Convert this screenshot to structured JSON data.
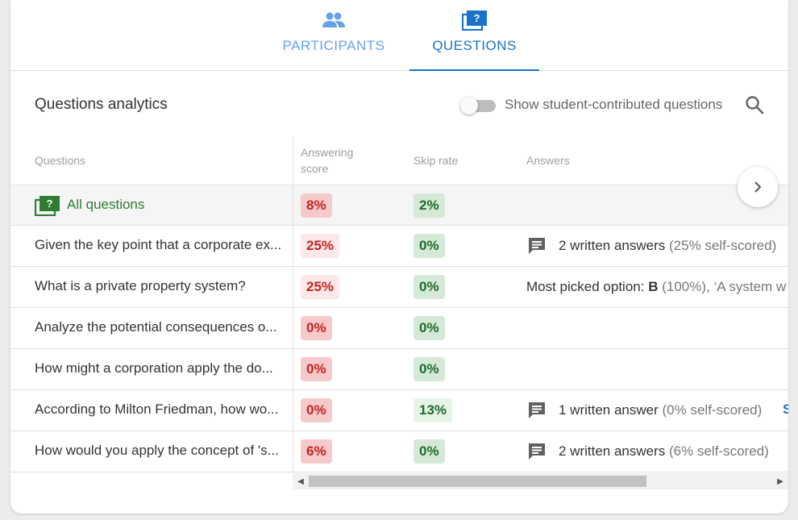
{
  "tabs": [
    {
      "label": "PARTICIPANTS",
      "icon": "people-icon",
      "active": false
    },
    {
      "label": "QUESTIONS",
      "icon": "questions-icon",
      "active": true
    }
  ],
  "header": {
    "title": "Questions analytics",
    "toggle_label": "Show student-contributed questions",
    "toggle_on": false
  },
  "columns": {
    "questions": "Questions",
    "answering_score_line1": "Answering",
    "answering_score_line2": "score",
    "skip_rate": "Skip rate",
    "answers": "Answers"
  },
  "all_row": {
    "label": "All questions",
    "score": "8%",
    "skip": "2%"
  },
  "rows": [
    {
      "question": "Given the key point that a corporate ex...",
      "score": "25%",
      "skip": "0%",
      "answer_main": "2 written answers",
      "answer_muted": "(25% self-scored)",
      "has_icon": true
    },
    {
      "question": "What is a private property system?",
      "score": "25%",
      "skip": "0%",
      "answer_prefix": "Most picked option:",
      "answer_bold": "B",
      "answer_muted": "(100%), ‘A system w",
      "has_icon": false
    },
    {
      "question": "Analyze the potential consequences o...",
      "score": "0%",
      "skip": "0%"
    },
    {
      "question": "How might a corporation apply the do...",
      "score": "0%",
      "skip": "0%"
    },
    {
      "question": "According to Milton Friedman, how wo...",
      "score": "0%",
      "skip": "13%",
      "answer_main": "1 written answer",
      "answer_muted": "(0% self-scored)",
      "has_icon": true,
      "trailing": "S"
    },
    {
      "question": "How would you apply the concept of 's...",
      "score": "6%",
      "skip": "0%",
      "answer_main": "2 written answers",
      "answer_muted": "(6% self-scored)",
      "has_icon": true
    }
  ],
  "colors": {
    "accent": "#1a73c9",
    "accent_light": "#64a4e6",
    "green": "#2e7d32",
    "red": "#c5221f"
  }
}
